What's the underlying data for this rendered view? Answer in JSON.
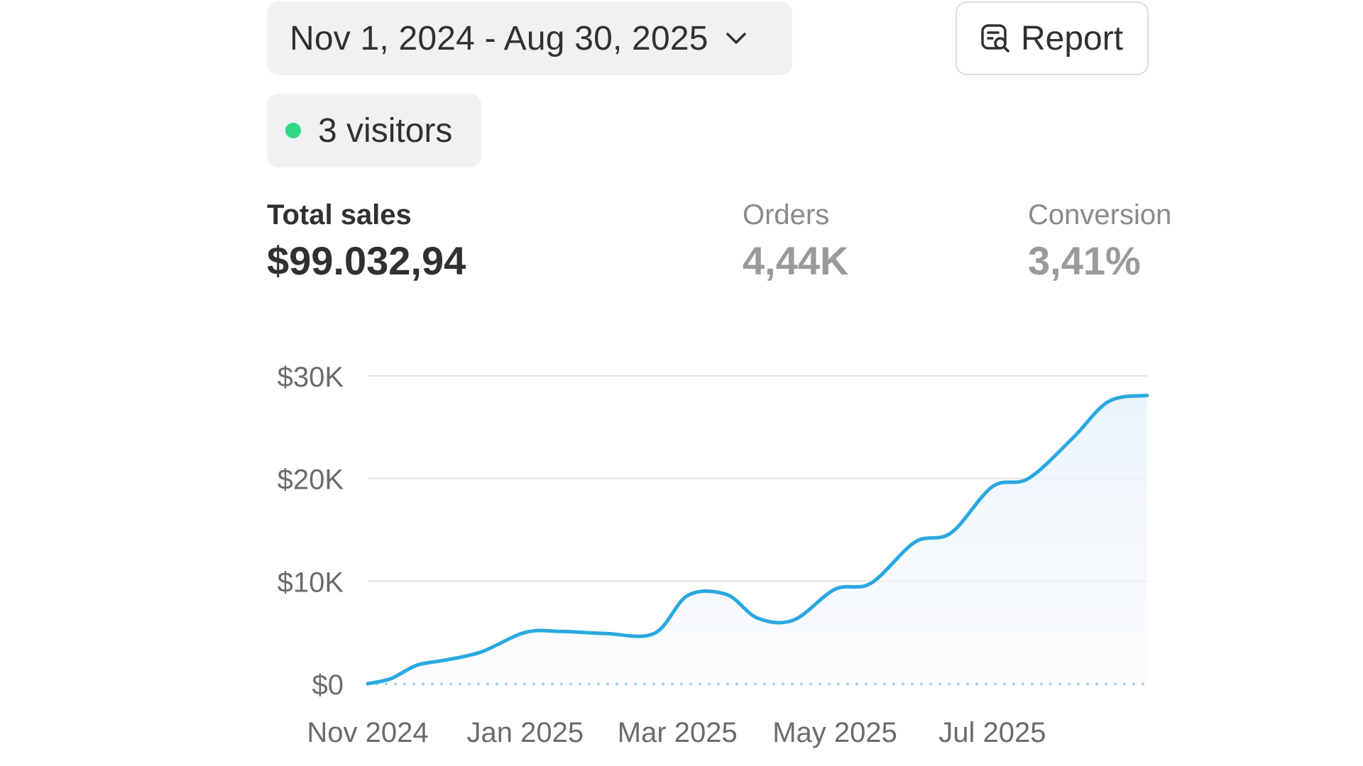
{
  "header": {
    "date_range_label": "Nov 1, 2024 - Aug 30, 2025",
    "report_label": "Report"
  },
  "visitors": {
    "label": "3 visitors",
    "dot_color": "#2fd883"
  },
  "metrics": {
    "total_sales": {
      "title": "Total sales",
      "value": "$99.032,94"
    },
    "orders": {
      "title": "Orders",
      "value": "4,44K"
    },
    "conversion": {
      "title": "Conversion",
      "value": "3,41%"
    }
  },
  "chart_data": {
    "type": "area",
    "line_color": "#29a8df",
    "baseline_color": "#8fc9e6",
    "yticks": [
      {
        "value": 0,
        "label": "$0"
      },
      {
        "value": 10000,
        "label": "$10K"
      },
      {
        "value": 20000,
        "label": "$20K"
      },
      {
        "value": 30000,
        "label": "$30K"
      }
    ],
    "xticks": [
      "Nov 2024",
      "Jan 2025",
      "Mar 2025",
      "May 2025",
      "Jul 2025"
    ],
    "ylim": [
      0,
      30000
    ],
    "series": [
      {
        "x": [
          "2024-11-01",
          "2024-11-10",
          "2024-11-20",
          "2024-12-01",
          "2024-12-15",
          "2025-01-01",
          "2025-01-15",
          "2025-02-01",
          "2025-02-20",
          "2025-03-05",
          "2025-03-20",
          "2025-04-01",
          "2025-04-15",
          "2025-05-01",
          "2025-05-15",
          "2025-06-01",
          "2025-06-15",
          "2025-07-01",
          "2025-07-15",
          "2025-08-01",
          "2025-08-15",
          "2025-08-30"
        ],
        "values": [
          0,
          500,
          1800,
          2300,
          3100,
          5000,
          5100,
          4900,
          4900,
          8600,
          8700,
          6400,
          6200,
          9200,
          9800,
          13800,
          14700,
          19200,
          20000,
          23900,
          27500,
          28100
        ]
      }
    ]
  }
}
